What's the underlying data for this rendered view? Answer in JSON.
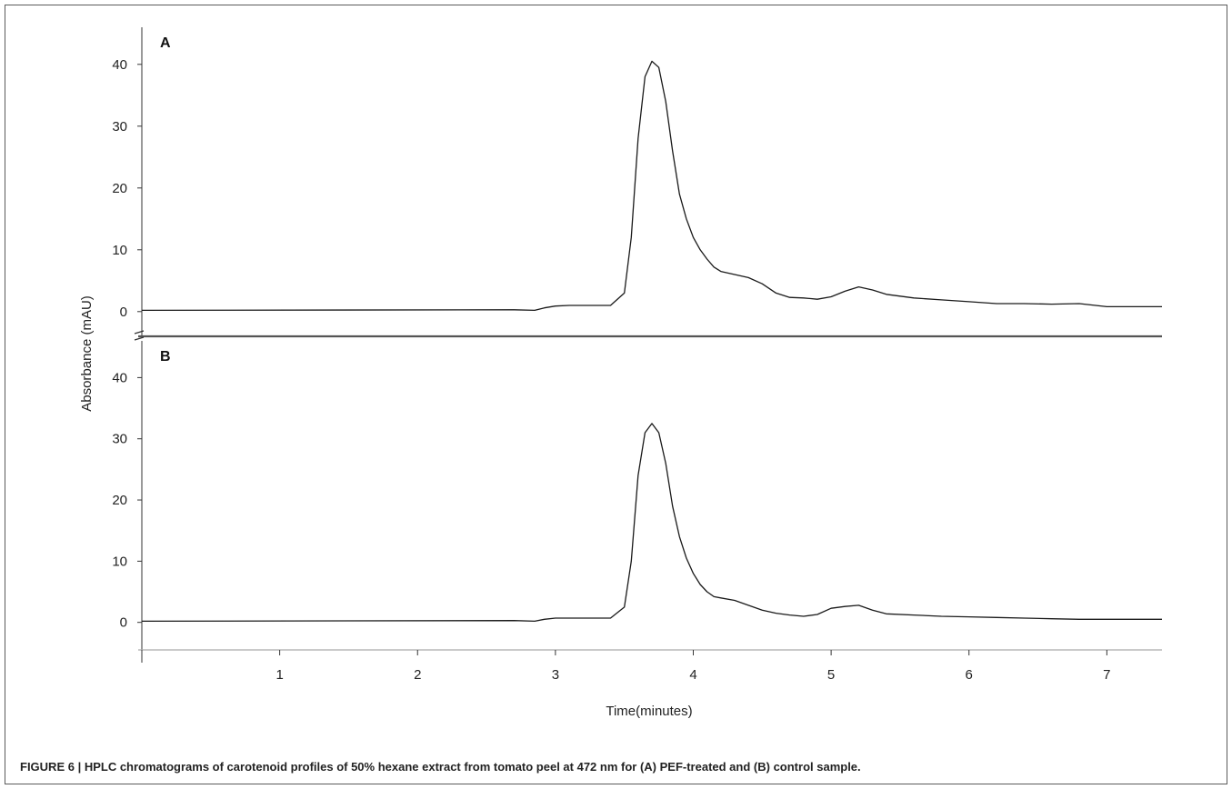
{
  "caption": "FIGURE 6 | HPLC chromatograms of carotenoid profiles of 50% hexane extract from tomato peel at 472 nm for (A) PEF-treated and (B) control sample.",
  "chart_data": {
    "type": "line",
    "xlabel": "Time(minutes)",
    "ylabel": "Absorbance (mAU)",
    "xlim": [
      0,
      7.4
    ],
    "x_ticks": [
      1,
      2,
      3,
      4,
      5,
      6,
      7
    ],
    "line_color": "#1a1a1a",
    "panels": [
      {
        "label": "A",
        "ylim": [
          -4,
          46
        ],
        "y_ticks": [
          0,
          10,
          20,
          30,
          40
        ],
        "series": [
          {
            "x": [
              0,
              2.7,
              2.85,
              2.92,
              3.0,
              3.1,
              3.4,
              3.5,
              3.55,
              3.6,
              3.65,
              3.7,
              3.75,
              3.8,
              3.85,
              3.9,
              3.95,
              4.0,
              4.05,
              4.1,
              4.15,
              4.2,
              4.3,
              4.4,
              4.5,
              4.6,
              4.7,
              4.8,
              4.9,
              5.0,
              5.1,
              5.2,
              5.3,
              5.4,
              5.6,
              5.8,
              6.0,
              6.2,
              6.4,
              6.6,
              6.8,
              7.0,
              7.4
            ],
            "y": [
              0.2,
              0.3,
              0.2,
              0.6,
              0.9,
              1.0,
              1.0,
              3.0,
              12.0,
              28.0,
              38.0,
              40.5,
              39.5,
              34.0,
              26.0,
              19.0,
              15.0,
              12.0,
              10.0,
              8.5,
              7.2,
              6.5,
              6.0,
              5.5,
              4.5,
              3.0,
              2.3,
              2.2,
              2.0,
              2.4,
              3.3,
              4.0,
              3.5,
              2.8,
              2.2,
              1.9,
              1.6,
              1.3,
              1.3,
              1.2,
              1.3,
              0.8,
              0.8
            ]
          }
        ]
      },
      {
        "label": "B",
        "ylim": [
          -4.5,
          46
        ],
        "y_ticks": [
          0,
          10,
          20,
          30,
          40
        ],
        "series": [
          {
            "x": [
              0,
              2.7,
              2.85,
              2.92,
              3.0,
              3.1,
              3.4,
              3.5,
              3.55,
              3.6,
              3.65,
              3.7,
              3.75,
              3.8,
              3.85,
              3.9,
              3.95,
              4.0,
              4.05,
              4.1,
              4.15,
              4.2,
              4.3,
              4.4,
              4.5,
              4.6,
              4.7,
              4.8,
              4.9,
              5.0,
              5.1,
              5.2,
              5.3,
              5.4,
              5.6,
              5.8,
              6.0,
              6.2,
              6.4,
              6.6,
              6.8,
              7.0,
              7.4
            ],
            "y": [
              0.2,
              0.3,
              0.2,
              0.5,
              0.7,
              0.7,
              0.7,
              2.5,
              10.0,
              24.0,
              31.0,
              32.5,
              31.0,
              26.0,
              19.0,
              14.0,
              10.5,
              8.0,
              6.2,
              5.0,
              4.2,
              4.0,
              3.6,
              2.8,
              2.0,
              1.5,
              1.2,
              1.0,
              1.3,
              2.3,
              2.6,
              2.8,
              2.0,
              1.4,
              1.2,
              1.0,
              0.9,
              0.8,
              0.7,
              0.6,
              0.5,
              0.5,
              0.5
            ]
          }
        ]
      }
    ]
  }
}
